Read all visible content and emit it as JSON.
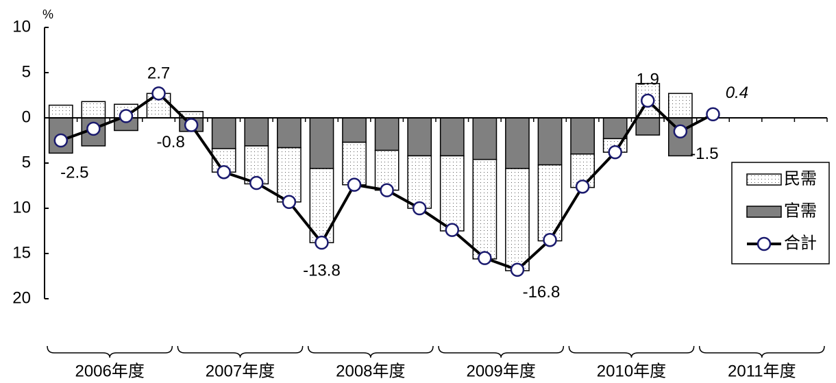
{
  "chart_data": {
    "type": "bar_line",
    "y_label": "%",
    "categories": [
      null,
      null,
      null,
      null,
      null,
      null,
      null,
      null,
      null,
      null,
      null,
      null,
      null,
      null,
      null,
      null,
      null,
      null,
      null,
      null,
      null,
      null,
      null,
      null
    ],
    "groups": [
      "2006年度",
      "2007年度",
      "2008年度",
      "2009年度",
      "2010年度",
      "2011年度"
    ],
    "series": [
      {
        "name": "民需",
        "kind": "bar",
        "color": "#ffffff",
        "values": [
          1.4,
          1.8,
          1.5,
          2.7,
          0.7,
          -2.6,
          -4.2,
          -6.0,
          -8.2,
          -4.7,
          -4.4,
          -5.8,
          -8.3,
          -11.0,
          -11.3,
          -8.4,
          -3.7,
          -1.5,
          3.8,
          2.7,
          null,
          null,
          null,
          null
        ]
      },
      {
        "name": "官需",
        "kind": "bar",
        "color": "#808080",
        "values": [
          -3.9,
          -3.1,
          -1.4,
          0,
          -1.5,
          -3.4,
          -3.1,
          -3.3,
          -5.6,
          -2.7,
          -3.6,
          -4.2,
          -4.2,
          -4.6,
          -5.6,
          -5.2,
          -4.0,
          -2.3,
          -1.9,
          -4.2,
          null,
          null,
          null,
          null
        ]
      },
      {
        "name": "合計",
        "kind": "line",
        "color": "#000000",
        "marker_color": "#1a1a6e",
        "values": [
          -2.5,
          -1.2,
          0.2,
          2.7,
          -0.8,
          -6.0,
          -7.2,
          -9.3,
          -13.8,
          -7.4,
          -8.0,
          -10.0,
          -12.4,
          -15.5,
          -16.8,
          -13.5,
          -7.6,
          -3.8,
          1.9,
          -1.5,
          0.4,
          null,
          null,
          null
        ],
        "value_labels": [
          "-2.5",
          null,
          null,
          "2.7",
          "-0.8",
          null,
          null,
          null,
          "-13.8",
          null,
          null,
          null,
          null,
          null,
          "-16.8",
          null,
          null,
          null,
          "1.9",
          "-1.5",
          "0.4",
          null,
          null,
          null
        ]
      }
    ],
    "ylim": [
      -20,
      10
    ],
    "yticks": [
      {
        "value": -20,
        "label": "20"
      },
      {
        "value": -15,
        "label": "15"
      },
      {
        "value": -10,
        "label": "10"
      },
      {
        "value": -5,
        "label": "5"
      },
      0,
      5,
      10
    ],
    "legend": "right"
  }
}
